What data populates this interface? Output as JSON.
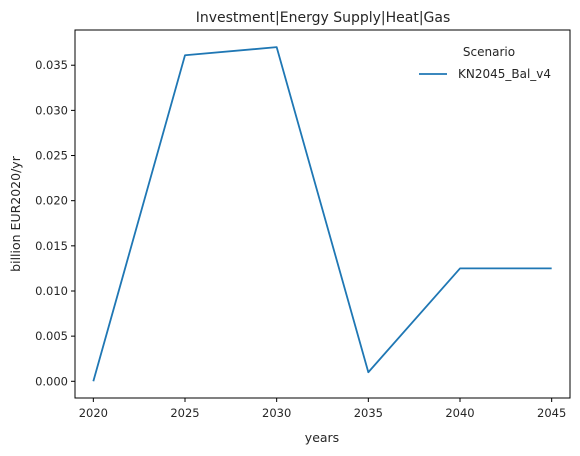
{
  "chart_data": {
    "type": "line",
    "title": "Investment|Energy Supply|Heat|Gas",
    "xlabel": "years",
    "ylabel": "billion EUR2020/yr",
    "x": [
      2020,
      2025,
      2030,
      2035,
      2040,
      2045
    ],
    "series": [
      {
        "name": "KN2045_Bal_v4",
        "color": "#1f77b4",
        "values": [
          0.0,
          0.0361,
          0.037,
          0.001,
          0.0125,
          0.0125
        ]
      }
    ],
    "xticks": [
      "2020",
      "2025",
      "2030",
      "2035",
      "2040",
      "2045"
    ],
    "yticks": [
      "0.000",
      "0.005",
      "0.010",
      "0.015",
      "0.020",
      "0.025",
      "0.030",
      "0.035"
    ],
    "xlim": [
      2019,
      2046
    ],
    "ylim": [
      -0.00185,
      0.0389
    ],
    "grid": false,
    "legend": {
      "title": "Scenario",
      "placement": "upper-right"
    }
  }
}
